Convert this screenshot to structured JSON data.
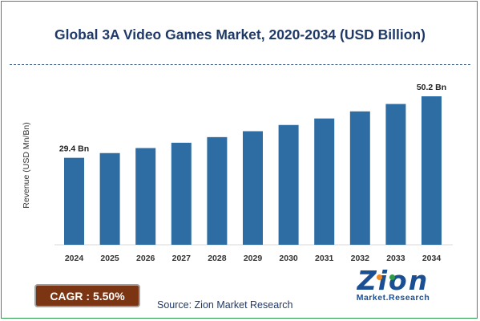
{
  "chart_data": {
    "type": "bar",
    "title": "Global 3A Video Games Market, 2020-2034 (USD Billion)",
    "xlabel": "",
    "ylabel": "Revenue (USD Mn/Bn)",
    "categories": [
      "2024",
      "2025",
      "2026",
      "2027",
      "2028",
      "2029",
      "2030",
      "2031",
      "2032",
      "2033",
      "2034"
    ],
    "values": [
      29.4,
      31.0,
      32.7,
      34.5,
      36.4,
      38.4,
      40.5,
      42.7,
      45.1,
      47.6,
      50.2
    ],
    "data_labels": [
      {
        "index": 0,
        "text": "29.4 Bn"
      },
      {
        "index": 10,
        "text": "50.2 Bn"
      }
    ],
    "ylim": [
      0,
      55
    ],
    "grid": false,
    "bar_color": "#2e6da4"
  },
  "cagr": {
    "label": "CAGR : 5.50%"
  },
  "source": {
    "text": "Source: Zion Market Research"
  },
  "logo": {
    "word": "Zion",
    "subtitle": "Market.Research"
  },
  "colors": {
    "title": "#1f3a68",
    "cagr_bg": "#7b3513",
    "frame": "#2f9a4d"
  }
}
